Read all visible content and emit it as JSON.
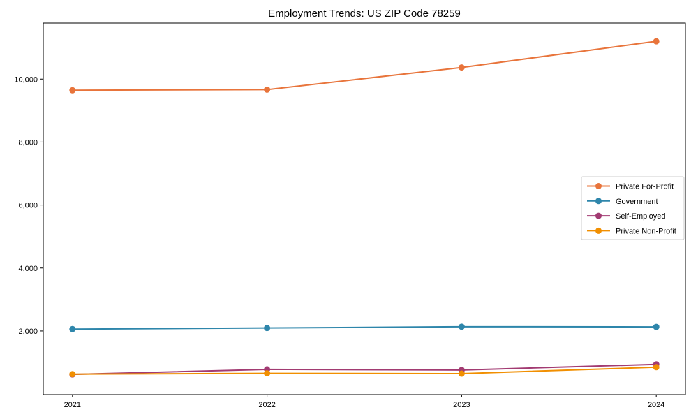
{
  "chart_data": {
    "type": "line",
    "title": "Employment Trends: US ZIP Code 78259",
    "xlabel": "",
    "ylabel": "",
    "x": [
      2021,
      2022,
      2023,
      2024
    ],
    "xtick_labels": [
      "2021",
      "2022",
      "2023",
      "2024"
    ],
    "yticks": [
      2000,
      4000,
      6000,
      8000,
      10000
    ],
    "ytick_labels": [
      "2,000",
      "4,000",
      "6,000",
      "8,000",
      "10,000"
    ],
    "ylim": [
      -20,
      11780
    ],
    "grid": false,
    "legend_position": "center right",
    "marker": "circle",
    "series": [
      {
        "name": "Private For-Profit",
        "color": "#e8743b",
        "values": [
          9645,
          9665,
          10370,
          11200
        ]
      },
      {
        "name": "Government",
        "color": "#2e86ab",
        "values": [
          2060,
          2095,
          2135,
          2130
        ]
      },
      {
        "name": "Self-Employed",
        "color": "#a23b72",
        "values": [
          620,
          780,
          760,
          940
        ]
      },
      {
        "name": "Private Non-Profit",
        "color": "#f18f01",
        "values": [
          630,
          655,
          645,
          850
        ]
      }
    ],
    "axis_color": "#000000",
    "legend_border_color": "#cccccc",
    "background_color": "#ffffff"
  }
}
